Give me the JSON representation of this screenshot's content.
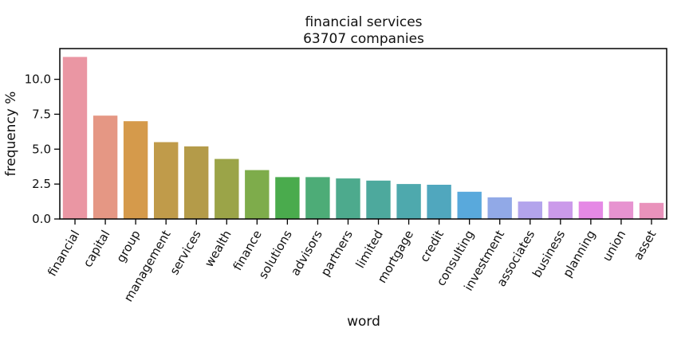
{
  "chart_data": {
    "type": "bar",
    "title": [
      "financial services",
      "63707 companies"
    ],
    "xlabel": "word",
    "ylabel": "frequency %",
    "ylim": [
      0,
      12.2
    ],
    "yticks": [
      "0.0",
      "2.5",
      "5.0",
      "7.5",
      "10.0"
    ],
    "grid": false,
    "categories": [
      "financial",
      "capital",
      "group",
      "management",
      "services",
      "wealth",
      "finance",
      "solutions",
      "advisors",
      "partners",
      "limited",
      "mortgage",
      "credit",
      "consulting",
      "investment",
      "associates",
      "business",
      "planning",
      "union",
      "asset"
    ],
    "values": [
      11.6,
      7.4,
      7.0,
      5.5,
      5.2,
      4.3,
      3.5,
      3.0,
      3.0,
      2.9,
      2.75,
      2.5,
      2.45,
      1.95,
      1.55,
      1.25,
      1.25,
      1.25,
      1.25,
      1.15
    ],
    "colors": [
      "#ea96a3",
      "#e59784",
      "#d59a4b",
      "#c09b4a",
      "#b49b49",
      "#9ba448",
      "#7eac4b",
      "#4aab4d",
      "#4dac77",
      "#4daa8d",
      "#4da99d",
      "#4ea9ad",
      "#50a7be",
      "#59a9dc",
      "#91a9e7",
      "#b3a4ec",
      "#cb9aea",
      "#e589e5",
      "#e793d0",
      "#e992bb"
    ]
  }
}
